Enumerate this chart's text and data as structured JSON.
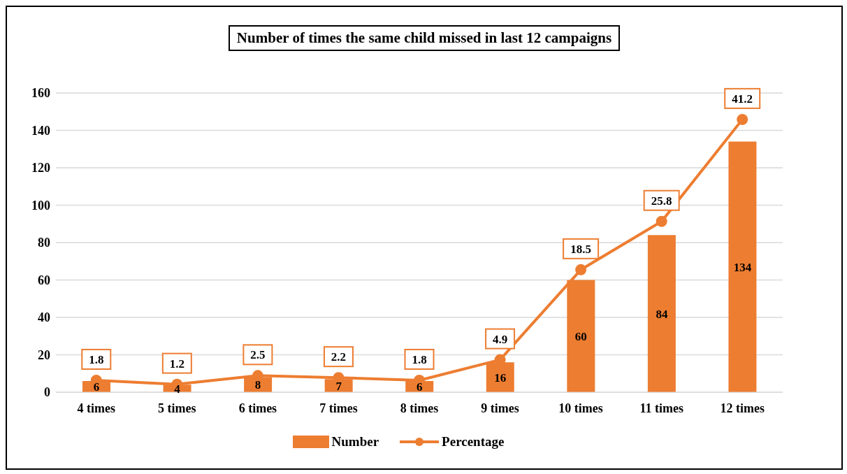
{
  "chart_data": {
    "type": "bar",
    "title": "Number of times the same child missed in last 12 campaigns",
    "categories": [
      "4 times",
      "5 times",
      "6 times",
      "7 times",
      "8 times",
      "9 times",
      "10 times",
      "11 times",
      "12 times"
    ],
    "series": [
      {
        "name": "Number",
        "color": "#ed7d31",
        "values": [
          6,
          4,
          8,
          7,
          6,
          16,
          60,
          84,
          134
        ]
      },
      {
        "name": "Percentage",
        "type": "line",
        "axis": "y2",
        "color": "#ed7d31",
        "marker": "circle",
        "line_style": "solid",
        "values": [
          1.8,
          1.2,
          2.5,
          2.2,
          1.8,
          4.9,
          18.5,
          25.8,
          41.2
        ]
      }
    ],
    "ylim": [
      0,
      160
    ],
    "yticks": [
      0,
      20,
      40,
      60,
      80,
      100,
      120,
      140,
      160
    ],
    "y2lim": [
      0,
      45.2
    ],
    "grid": "y",
    "legend": "bottom",
    "data_labels": true
  }
}
